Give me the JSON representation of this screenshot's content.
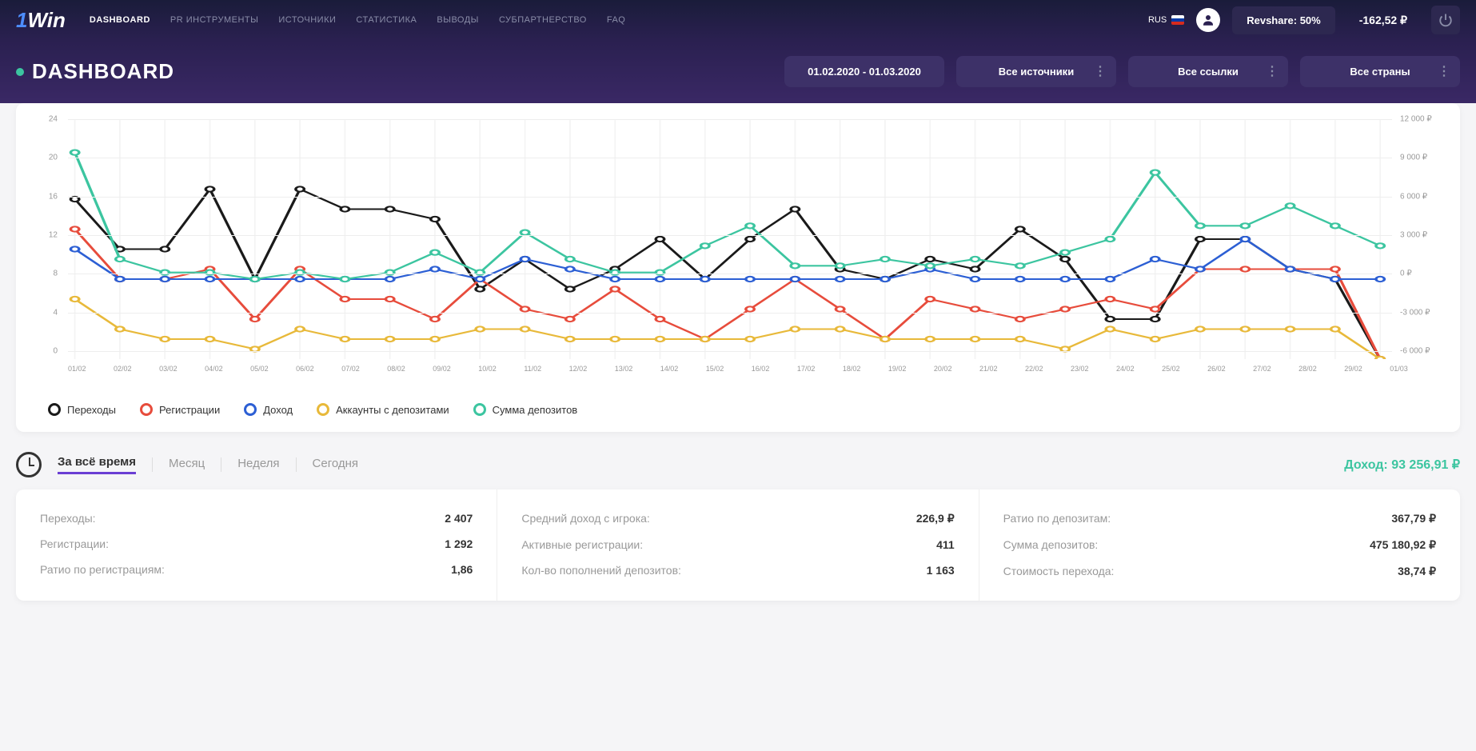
{
  "header": {
    "logo_prefix": "1",
    "logo_text": "Win",
    "nav": [
      {
        "label": "DASHBOARD",
        "active": true
      },
      {
        "label": "PR ИНСТРУМЕНТЫ",
        "active": false
      },
      {
        "label": "ИСТОЧНИКИ",
        "active": false
      },
      {
        "label": "СТАТИСТИКА",
        "active": false
      },
      {
        "label": "ВЫВОДЫ",
        "active": false
      },
      {
        "label": "СУБПАРТНЕРСТВО",
        "active": false
      },
      {
        "label": "FAQ",
        "active": false
      }
    ],
    "lang": "RUS",
    "revshare": "Revshare: 50%",
    "balance": "-162,52 ₽"
  },
  "subheader": {
    "title": "DASHBOARD",
    "date_range": "01.02.2020 - 01.03.2020",
    "filter_sources": "Все источники",
    "filter_links": "Все ссылки",
    "filter_countries": "Все страны"
  },
  "chart": {
    "type": "line",
    "left_axis": {
      "min": 0,
      "max": 24,
      "step": 4,
      "ticks": [
        0,
        4,
        8,
        12,
        16,
        20,
        24
      ]
    },
    "right_axis": {
      "min": -6000,
      "max": 12000,
      "step": 3000,
      "ticks": [
        "-6 000 ₽",
        "-3 000 ₽",
        "0 ₽",
        "3 000 ₽",
        "6 000 ₽",
        "9 000 ₽",
        "12 000 ₽"
      ]
    },
    "x_labels": [
      "01/02",
      "02/02",
      "03/02",
      "04/02",
      "05/02",
      "06/02",
      "07/02",
      "08/02",
      "09/02",
      "10/02",
      "11/02",
      "12/02",
      "13/02",
      "14/02",
      "15/02",
      "16/02",
      "17/02",
      "18/02",
      "19/02",
      "20/02",
      "21/02",
      "22/02",
      "23/02",
      "24/02",
      "25/02",
      "26/02",
      "27/02",
      "28/02",
      "29/02",
      "01/03"
    ],
    "series": [
      {
        "name": "Переходы",
        "color": "#1a1a1a",
        "axis": "left",
        "data": [
          16,
          11,
          11,
          17,
          8,
          17,
          15,
          15,
          14,
          7,
          10,
          7,
          9,
          12,
          8,
          12,
          15,
          9,
          8,
          10,
          9,
          13,
          10,
          4,
          4,
          12,
          12,
          9,
          8,
          0
        ]
      },
      {
        "name": "Регистрации",
        "color": "#e74c3c",
        "axis": "left",
        "data": [
          13,
          8,
          8,
          9,
          4,
          9,
          6,
          6,
          4,
          8,
          5,
          4,
          7,
          4,
          2,
          5,
          8,
          5,
          2,
          6,
          5,
          4,
          5,
          6,
          5,
          9,
          9,
          9,
          9,
          0
        ]
      },
      {
        "name": "Доход",
        "color": "#2c5fd4",
        "axis": "left",
        "data": [
          11,
          8,
          8,
          8,
          8,
          8,
          8,
          8,
          9,
          8,
          10,
          9,
          8,
          8,
          8,
          8,
          8,
          8,
          8,
          9,
          8,
          8,
          8,
          8,
          10,
          9,
          12,
          9,
          8,
          8
        ]
      },
      {
        "name": "Аккаунты с депозитами",
        "color": "#e8b93a",
        "axis": "left",
        "data": [
          6,
          3,
          2,
          2,
          1,
          3,
          2,
          2,
          2,
          3,
          3,
          2,
          2,
          2,
          2,
          2,
          3,
          3,
          2,
          2,
          2,
          2,
          1,
          3,
          2,
          3,
          3,
          3,
          3,
          0
        ]
      },
      {
        "name": "Сумма депозитов",
        "color": "#3cc5a0",
        "axis": "right",
        "data": [
          9500,
          1500,
          500,
          500,
          0,
          500,
          0,
          500,
          2000,
          500,
          3500,
          1500,
          500,
          500,
          2500,
          4000,
          1000,
          1000,
          1500,
          1000,
          1500,
          1000,
          2000,
          3000,
          8000,
          4000,
          4000,
          5500,
          4000,
          2500
        ]
      }
    ],
    "grid_color": "#eeeeee",
    "background": "#ffffff"
  },
  "legend": {
    "items": [
      {
        "label": "Переходы",
        "color": "#1a1a1a"
      },
      {
        "label": "Регистрации",
        "color": "#e74c3c"
      },
      {
        "label": "Доход",
        "color": "#2c5fd4"
      },
      {
        "label": "Аккаунты с депозитами",
        "color": "#e8b93a"
      },
      {
        "label": "Сумма депозитов",
        "color": "#3cc5a0"
      }
    ]
  },
  "stats": {
    "time_tabs": [
      {
        "label": "За всё время",
        "active": true
      },
      {
        "label": "Месяц",
        "active": false
      },
      {
        "label": "Неделя",
        "active": false
      },
      {
        "label": "Сегодня",
        "active": false
      }
    ],
    "income_label": "Доход:",
    "income_value": "93 256,91 ₽",
    "cols": [
      [
        {
          "label": "Переходы:",
          "value": "2 407"
        },
        {
          "label": "Регистрации:",
          "value": "1 292"
        },
        {
          "label": "Ратио по регистрациям:",
          "value": "1,86"
        }
      ],
      [
        {
          "label": "Средний доход с игрока:",
          "value": "226,9 ₽"
        },
        {
          "label": "Активные регистрации:",
          "value": "411"
        },
        {
          "label": "Кол-во пополнений депозитов:",
          "value": "1 163"
        }
      ],
      [
        {
          "label": "Ратио по депозитам:",
          "value": "367,79 ₽"
        },
        {
          "label": "Сумма депозитов:",
          "value": "475 180,92 ₽"
        },
        {
          "label": "Стоимость перехода:",
          "value": "38,74 ₽"
        }
      ]
    ]
  }
}
